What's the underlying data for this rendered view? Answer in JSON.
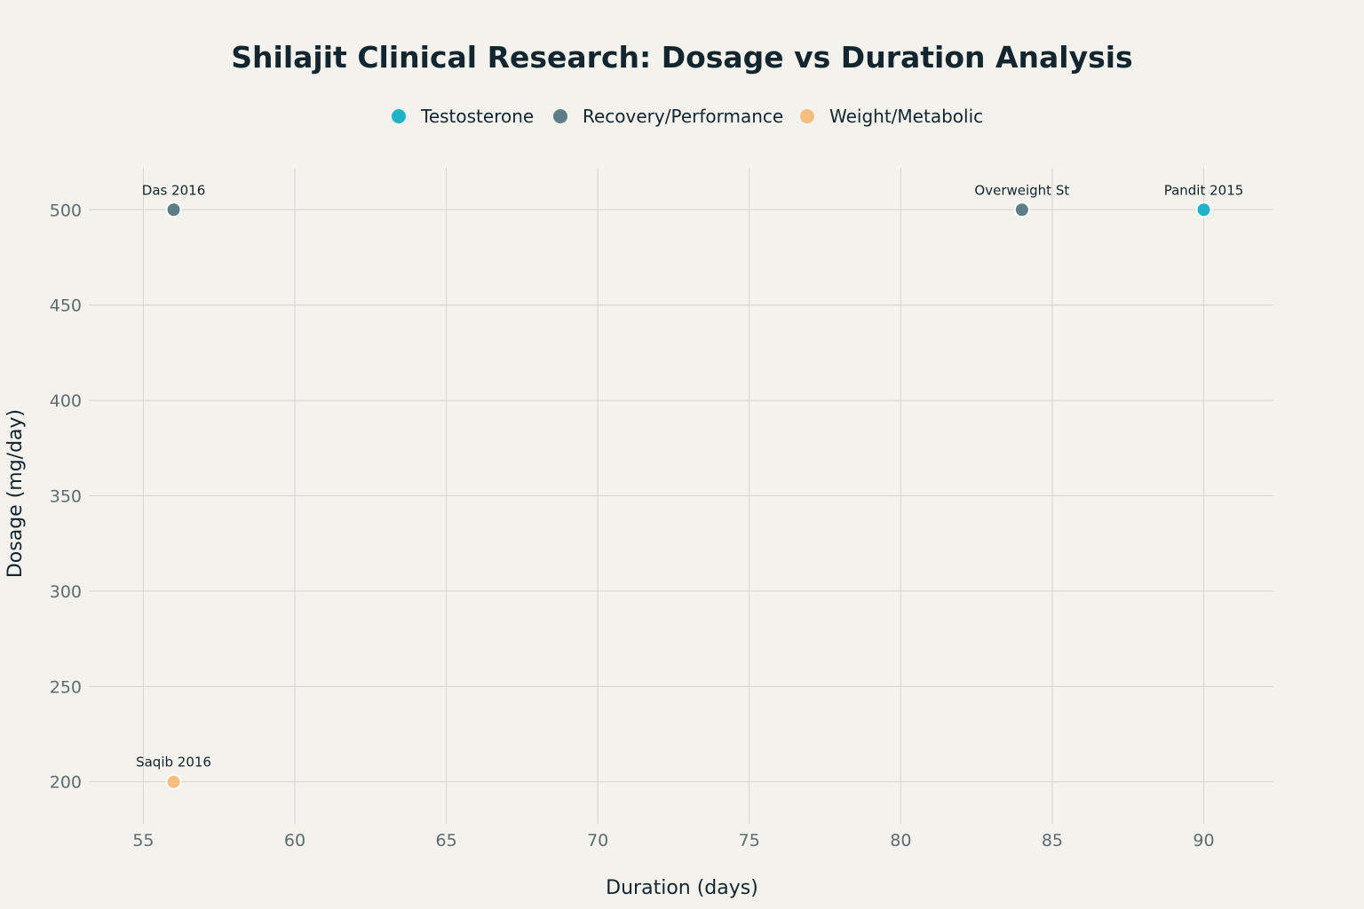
{
  "chart_data": {
    "type": "scatter",
    "title": "Shilajit Clinical Research: Dosage vs Duration Analysis",
    "xlabel": "Duration (days)",
    "ylabel": "Dosage (mg/day)",
    "xlim": [
      53.2,
      92.3
    ],
    "ylim": [
      178,
      522
    ],
    "x_ticks": [
      55,
      60,
      65,
      70,
      75,
      80,
      85,
      90
    ],
    "y_ticks": [
      200,
      250,
      300,
      350,
      400,
      450,
      500
    ],
    "grid": true,
    "legend_position": "top-center",
    "series": [
      {
        "name": "Testosterone",
        "color": "#1fb3c8",
        "points": [
          {
            "x": 90,
            "y": 500,
            "label": "Pandit 2015"
          }
        ]
      },
      {
        "name": "Recovery/Performance",
        "color": "#5d7e88",
        "points": [
          {
            "x": 56,
            "y": 500,
            "label": "Das 2016"
          },
          {
            "x": 84,
            "y": 500,
            "label": "Overweight St"
          }
        ]
      },
      {
        "name": "Weight/Metabolic",
        "color": "#f6bd80",
        "points": [
          {
            "x": 56,
            "y": 200,
            "label": "Saqib 2016"
          }
        ]
      }
    ]
  }
}
